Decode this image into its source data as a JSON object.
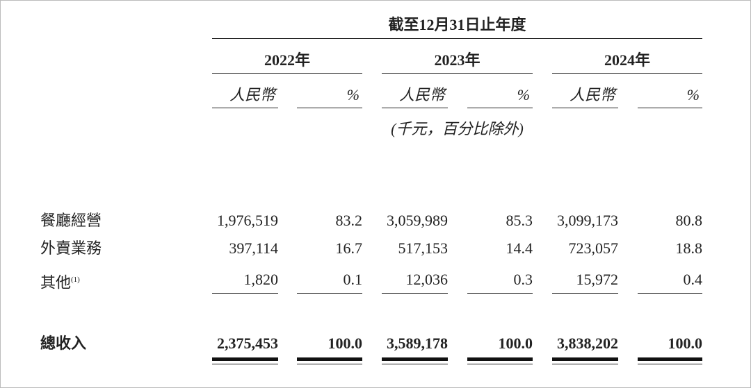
{
  "header": {
    "period_title": "截至12月31日止年度",
    "years": [
      "2022年",
      "2023年",
      "2024年"
    ],
    "currency_label": "人民幣",
    "percent_label": "%",
    "unit_note": "(千元，百分比除外)"
  },
  "rows": [
    {
      "label": "餐廳經營",
      "note": "",
      "values": [
        "1,976,519",
        "83.2",
        "3,059,989",
        "85.3",
        "3,099,173",
        "80.8"
      ]
    },
    {
      "label": "外賣業務",
      "note": "",
      "values": [
        "397,114",
        "16.7",
        "517,153",
        "14.4",
        "723,057",
        "18.8"
      ]
    },
    {
      "label": "其他",
      "note": "(1)",
      "values": [
        "1,820",
        "0.1",
        "12,036",
        "0.3",
        "15,972",
        "0.4"
      ]
    }
  ],
  "total": {
    "label": "總收入",
    "values": [
      "2,375,453",
      "100.0",
      "3,589,178",
      "100.0",
      "3,838,202",
      "100.0"
    ]
  }
}
